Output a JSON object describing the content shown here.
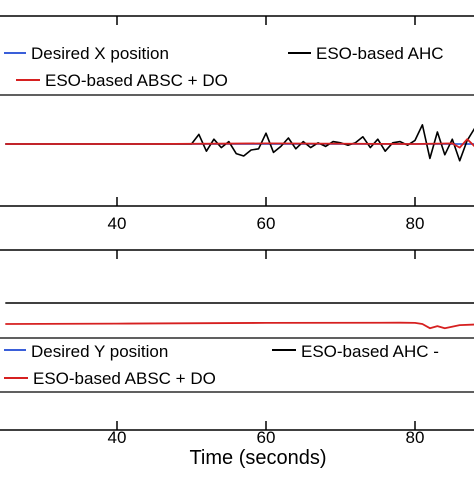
{
  "chart_data": [
    {
      "type": "line",
      "xlim": [
        25,
        98
      ],
      "xticks": [
        40,
        60,
        80
      ],
      "xtick_labels": [
        "40",
        "60",
        "80"
      ],
      "xlabel": "",
      "ylabel": "",
      "title": "",
      "grid": false,
      "legend": {
        "placement": "top",
        "entries": [
          {
            "label": "Desired X position",
            "color": "#3a5fd9"
          },
          {
            "label": "ESO-based AHC",
            "color": "#000000"
          },
          {
            "label": "ESO-based ABSC + DO",
            "color": "#d62020"
          }
        ]
      },
      "series": [
        {
          "name": "Desired X position",
          "color": "#3a5fd9",
          "x": [
            25,
            98
          ],
          "y": [
            0,
            0
          ]
        },
        {
          "name": "ESO-based AHC",
          "color": "#000000",
          "x": [
            25,
            50,
            51,
            52,
            53,
            54,
            55,
            56,
            57,
            58,
            59,
            60,
            61,
            62,
            63,
            64,
            65,
            66,
            67,
            68,
            69,
            70,
            71,
            72,
            73,
            74,
            75,
            76,
            77,
            78,
            79,
            80,
            81,
            82,
            83,
            84,
            85,
            86,
            87,
            88,
            89,
            90,
            91,
            92,
            93,
            94,
            95,
            96,
            97,
            98
          ],
          "y": [
            0,
            0,
            0.8,
            -0.6,
            0.4,
            -0.3,
            0.2,
            -0.8,
            -1.0,
            -0.5,
            -0.4,
            0.9,
            -0.7,
            -0.2,
            0.5,
            -0.4,
            0.2,
            -0.3,
            0.1,
            -0.2,
            0.2,
            0.1,
            -0.1,
            0.1,
            0.6,
            -0.3,
            0.4,
            -0.6,
            0.1,
            0.2,
            -0.1,
            0.3,
            1.6,
            -1.2,
            1.0,
            -0.9,
            0.4,
            -1.4,
            0.3,
            1.3,
            -0.8,
            0.6,
            -0.3,
            0.3,
            -0.2,
            0.1,
            -0.1,
            0.1,
            0,
            0
          ]
        },
        {
          "name": "ESO-based ABSC + DO",
          "color": "#d62020",
          "x": [
            25,
            45,
            60,
            80,
            85,
            86,
            87,
            88,
            89,
            90,
            98
          ],
          "y": [
            0,
            0,
            0.05,
            0,
            0.05,
            -0.3,
            0.4,
            -0.2,
            0.1,
            0,
            0
          ]
        }
      ]
    },
    {
      "type": "line",
      "xlim": [
        25,
        98
      ],
      "xticks": [
        40,
        60,
        80
      ],
      "xtick_labels": [
        "40",
        "60",
        "80"
      ],
      "xlabel": "Time (seconds)",
      "ylabel": "",
      "title": "",
      "grid": false,
      "legend": {
        "placement": "bottom",
        "entries": [
          {
            "label": "Desired Y position",
            "color": "#3a5fd9"
          },
          {
            "label": "ESO-based AHC -",
            "color": "#000000"
          },
          {
            "label": "ESO-based ABSC + DO",
            "color": "#d62020"
          }
        ]
      },
      "series": [
        {
          "name": "ESO-based AHC",
          "color": "#000000",
          "x": [
            25,
            98
          ],
          "y": [
            1,
            1
          ]
        },
        {
          "name": "ESO-based ABSC + DO",
          "color": "#d62020",
          "x": [
            25,
            40,
            60,
            78,
            80,
            81,
            82,
            83,
            84,
            86,
            90,
            98
          ],
          "y": [
            0,
            0.02,
            0.05,
            0.06,
            0.05,
            0.0,
            -0.2,
            -0.1,
            -0.2,
            -0.05,
            0,
            0.05
          ]
        }
      ]
    }
  ]
}
